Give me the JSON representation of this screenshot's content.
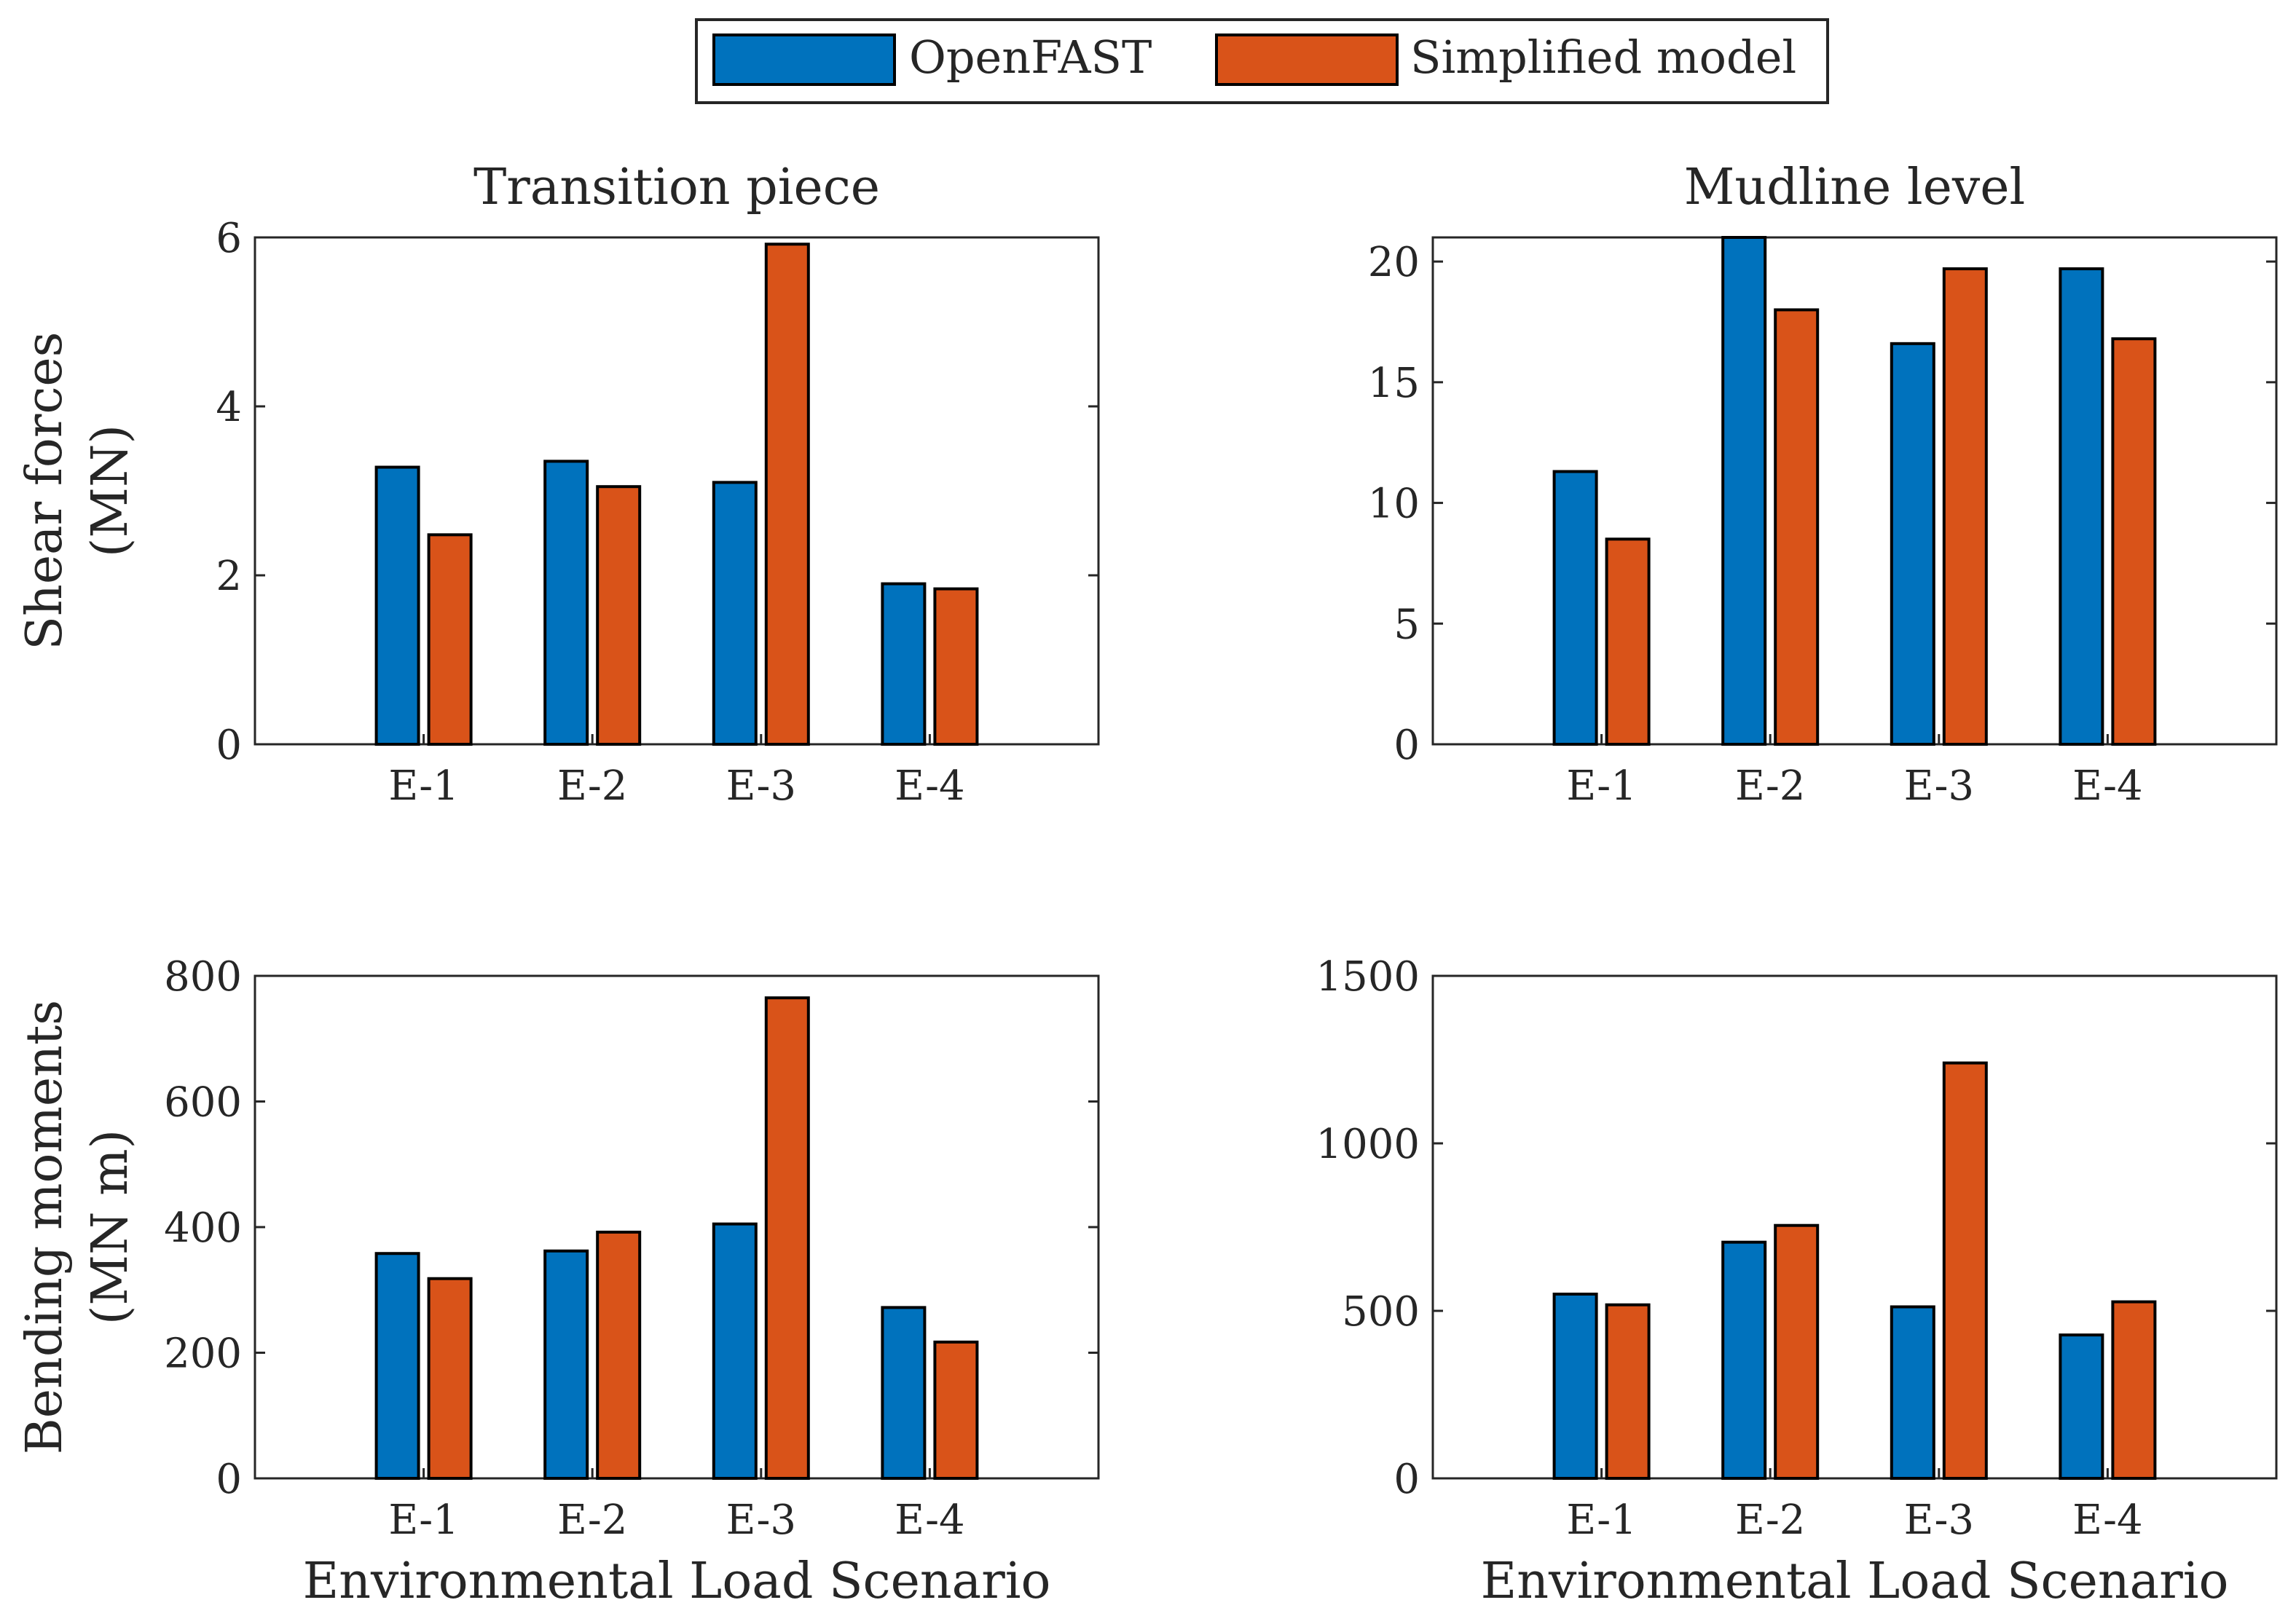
{
  "legend": {
    "items": [
      {
        "label": "OpenFAST",
        "color": "#0072BD"
      },
      {
        "label": "Simplified model",
        "color": "#D95319"
      }
    ]
  },
  "chart_data": [
    {
      "type": "bar",
      "title": "Transition piece",
      "ylabel_lines": [
        "Shear forces",
        "(MN)"
      ],
      "xlabel": "",
      "categories": [
        "E-1",
        "E-2",
        "E-3",
        "E-4"
      ],
      "ylim": [
        0,
        6
      ],
      "yticks": [
        0,
        2,
        4,
        6
      ],
      "series": [
        {
          "name": "OpenFAST",
          "color": "#0072BD",
          "values": [
            3.28,
            3.35,
            3.1,
            1.9
          ]
        },
        {
          "name": "Simplified model",
          "color": "#D95319",
          "values": [
            2.48,
            3.05,
            5.92,
            1.84
          ]
        }
      ]
    },
    {
      "type": "bar",
      "title": "Mudline level",
      "ylabel_lines": [],
      "xlabel": "",
      "categories": [
        "E-1",
        "E-2",
        "E-3",
        "E-4"
      ],
      "ylim": [
        0,
        21
      ],
      "yticks": [
        0,
        5,
        10,
        15,
        20
      ],
      "series": [
        {
          "name": "OpenFAST",
          "color": "#0072BD",
          "values": [
            11.3,
            21.0,
            16.6,
            19.7
          ]
        },
        {
          "name": "Simplified model",
          "color": "#D95319",
          "values": [
            8.5,
            18.0,
            19.7,
            16.8
          ]
        }
      ]
    },
    {
      "type": "bar",
      "title": "",
      "ylabel_lines": [
        "Bending moments",
        "(MN m)"
      ],
      "xlabel": "Environmental Load Scenario",
      "categories": [
        "E-1",
        "E-2",
        "E-3",
        "E-4"
      ],
      "ylim": [
        0,
        800
      ],
      "yticks": [
        0,
        200,
        400,
        600,
        800
      ],
      "series": [
        {
          "name": "OpenFAST",
          "color": "#0072BD",
          "values": [
            358,
            362,
            405,
            272
          ]
        },
        {
          "name": "Simplified model",
          "color": "#D95319",
          "values": [
            318,
            392,
            765,
            217
          ]
        }
      ]
    },
    {
      "type": "bar",
      "title": "",
      "ylabel_lines": [],
      "xlabel": "Environmental Load Scenario",
      "categories": [
        "E-1",
        "E-2",
        "E-3",
        "E-4"
      ],
      "ylim": [
        0,
        1500
      ],
      "yticks": [
        0,
        500,
        1000,
        1500
      ],
      "series": [
        {
          "name": "OpenFAST",
          "color": "#0072BD",
          "values": [
            550,
            705,
            512,
            428
          ]
        },
        {
          "name": "Simplified model",
          "color": "#D95319",
          "values": [
            518,
            755,
            1240,
            527
          ]
        }
      ]
    }
  ]
}
